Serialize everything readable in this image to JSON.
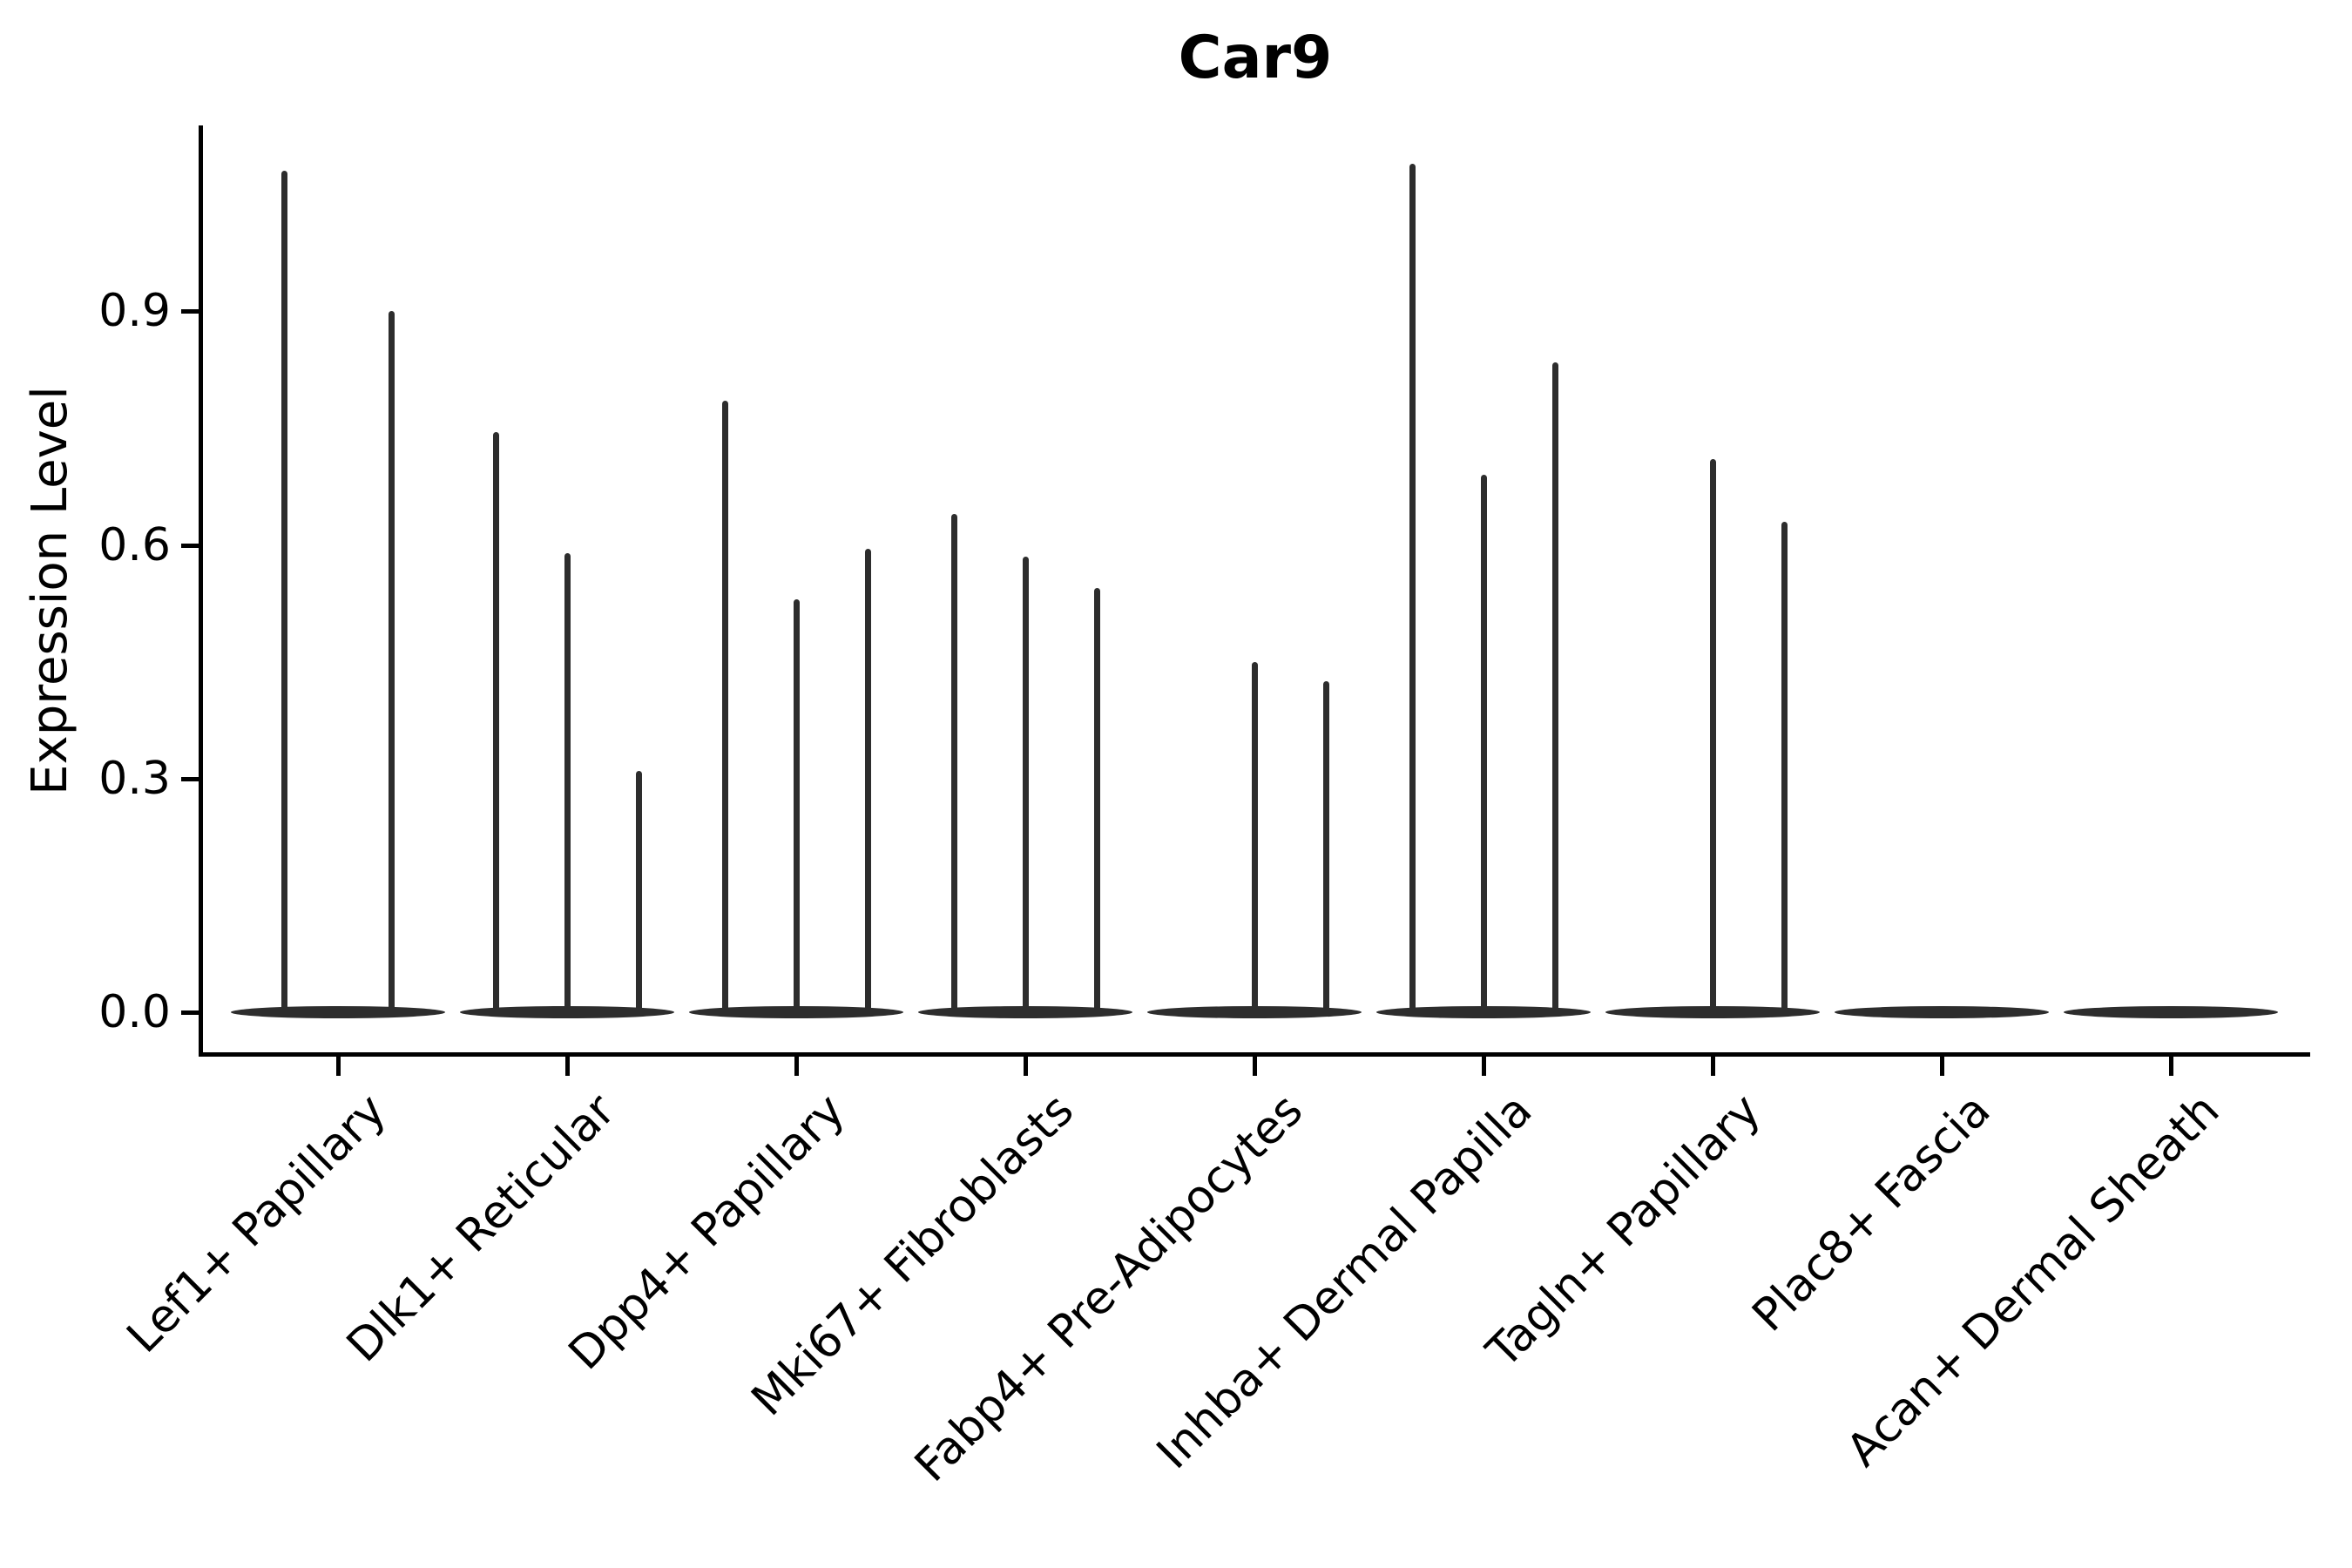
{
  "figure": {
    "title": "Car9"
  },
  "chart_data": {
    "type": "violin",
    "title": "Car9",
    "xlabel": "",
    "ylabel": "Expression Level",
    "ylim": [
      0,
      1.14
    ],
    "yticks": [
      0.0,
      0.3,
      0.6,
      0.9
    ],
    "ytick_labels": [
      "0.0",
      "0.3",
      "0.6",
      "0.9"
    ],
    "grid": false,
    "legend_position": "none",
    "categories": [
      "Lef1+ Papillary",
      "Dlk1+ Reticular",
      "Dpp4+ Papillary",
      "Mki67+ Fibroblasts",
      "Fabp4+ Pre-Adipocytes",
      "Inhba+ Dermal Papilla",
      "Tagln+ Papillary",
      "Plac8+ Fascia",
      "Acan+ Dermal Sheath"
    ],
    "violins": [
      {
        "category": "Lef1+ Papillary",
        "spike_max_values": [
          1.08,
          0.9
        ]
      },
      {
        "category": "Dlk1+ Reticular",
        "spike_max_values": [
          0.745,
          0.59,
          0.31
        ]
      },
      {
        "category": "Dpp4+ Papillary",
        "spike_max_values": [
          0.785,
          0.53,
          0.595
        ]
      },
      {
        "category": "Mki67+ Fibroblasts",
        "spike_max_values": [
          0.64,
          0.585,
          0.545
        ]
      },
      {
        "category": "Fabp4+ Pre-Adipocytes",
        "spike_max_values": [
          0,
          0.45,
          0.425
        ]
      },
      {
        "category": "Inhba+ Dermal Papilla",
        "spike_max_values": [
          1.09,
          0.69,
          0.835
        ]
      },
      {
        "category": "Tagln+ Papillary",
        "spike_max_values": [
          0,
          0.71,
          0.63
        ]
      },
      {
        "category": "Plac8+ Fascia",
        "spike_max_values": [
          0,
          0,
          0
        ]
      },
      {
        "category": "Acan+ Dermal Sheath",
        "spike_max_values": [
          0,
          0,
          0
        ]
      }
    ],
    "colors": {
      "violin": "#2d2d2d",
      "axis": "#000000",
      "text": "#000000",
      "background": "#ffffff"
    }
  }
}
